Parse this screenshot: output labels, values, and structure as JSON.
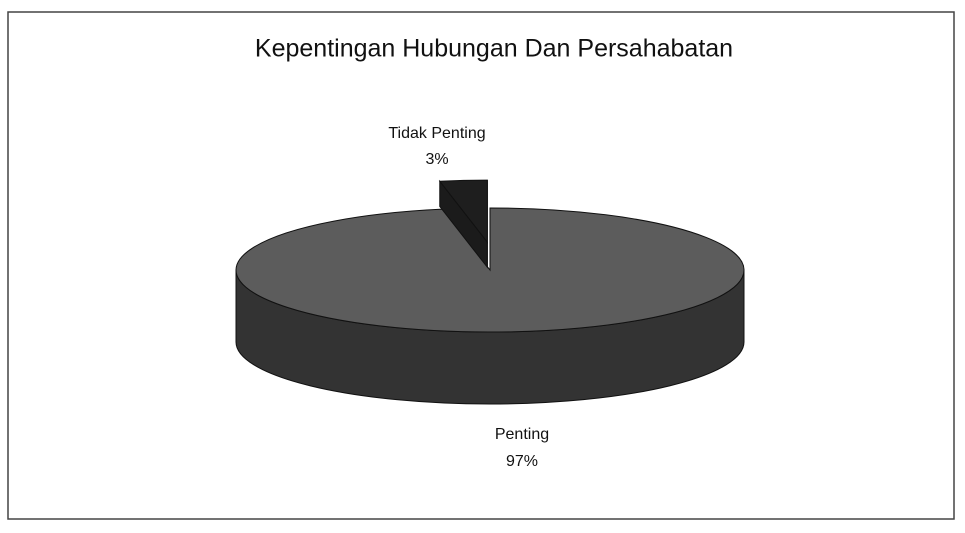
{
  "chart_data": {
    "type": "pie",
    "title": "Kepentingan Hubungan Dan Persahabatan",
    "categories": [
      "Tidak Penting",
      "Penting"
    ],
    "values": [
      3,
      97
    ],
    "value_labels": [
      "3%",
      "97%"
    ],
    "colors": [
      "#1e1e1e",
      "#5c5c5c"
    ]
  }
}
